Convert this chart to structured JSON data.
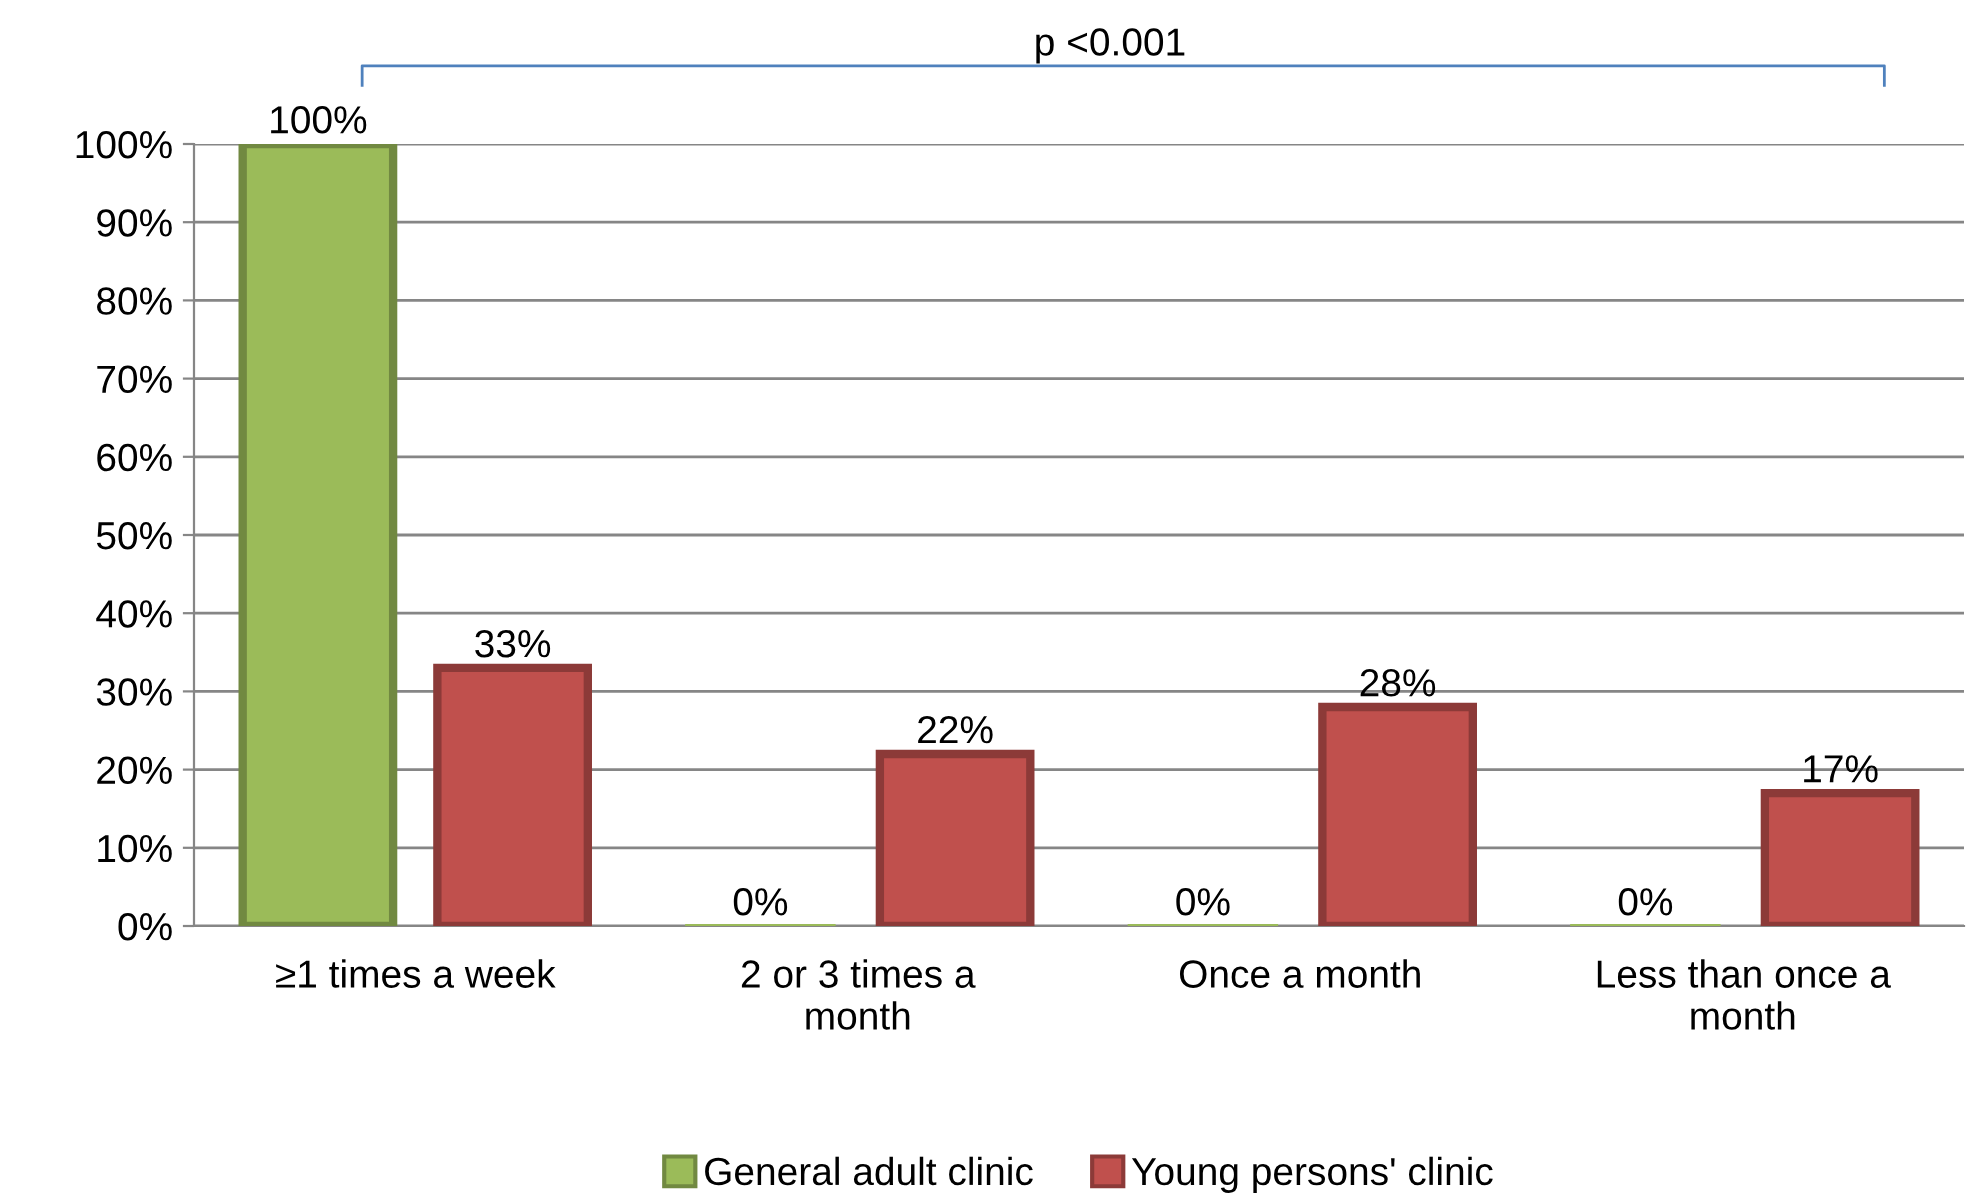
{
  "chart_data": {
    "type": "bar",
    "categories": [
      "≥1 times a week",
      "2 or 3 times a\nmonth",
      "Once a month",
      "Less than once a\nmonth"
    ],
    "series": [
      {
        "name": "General adult clinic",
        "color": "#9bbb59",
        "values": [
          100,
          0,
          0,
          0
        ],
        "value_labels": [
          "100%",
          "0%",
          "0%",
          "0%"
        ]
      },
      {
        "name": "Young persons' clinic",
        "color": "#c0504d",
        "values": [
          33,
          22,
          28,
          17
        ],
        "value_labels": [
          "33%",
          "22%",
          "28%",
          "17%"
        ]
      }
    ],
    "ylim": [
      0,
      100
    ],
    "yticks": [
      {
        "value": 0,
        "label": "0%"
      },
      {
        "value": 10,
        "label": "10%"
      },
      {
        "value": 20,
        "label": "20%"
      },
      {
        "value": 30,
        "label": "30%"
      },
      {
        "value": 40,
        "label": "40%"
      },
      {
        "value": 50,
        "label": "50%"
      },
      {
        "value": 60,
        "label": "60%"
      },
      {
        "value": 70,
        "label": "70%"
      },
      {
        "value": 80,
        "label": "80%"
      },
      {
        "value": 90,
        "label": "90%"
      },
      {
        "value": 100,
        "label": "100%"
      }
    ],
    "grid": "y",
    "legend": "bottom",
    "annotations": [
      "p <0.001"
    ]
  }
}
